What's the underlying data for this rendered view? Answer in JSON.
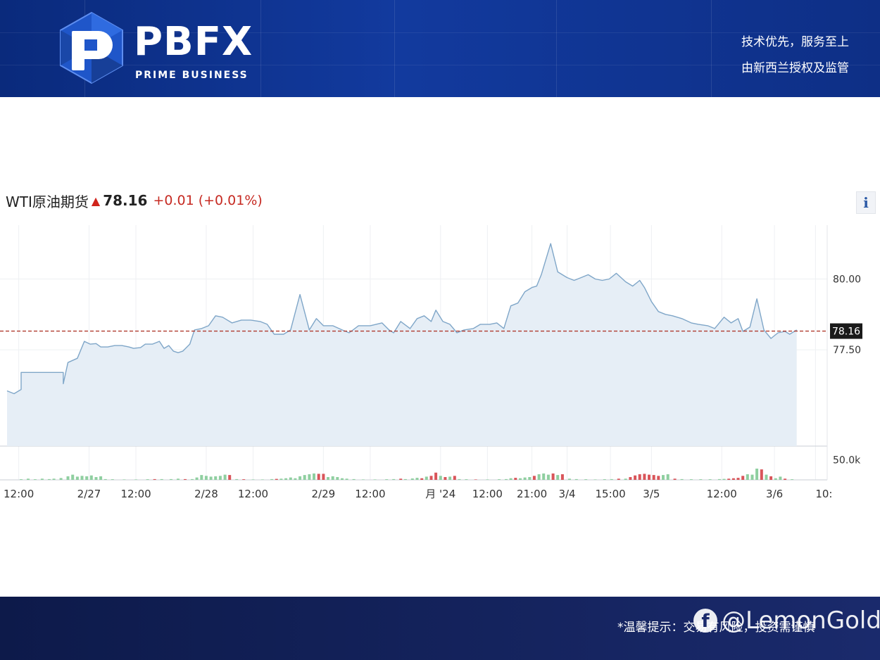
{
  "header": {
    "brand_word": "PBFX",
    "brand_sub": "PRIME BUSINESS",
    "slogan_1": "技术优先，服务至上",
    "slogan_2": "由新西兰授权及监管"
  },
  "quote": {
    "name": "WTI原油期货",
    "price": "78.16",
    "change": "+0.01",
    "change_pct": "(+0.01%)",
    "direction": "up"
  },
  "info_button": {
    "label": "i"
  },
  "colors": {
    "line": "#7fa6c8",
    "area": "#e6eef6",
    "price_line": "#b03a2e",
    "volume_up": "#8fcfa0",
    "volume_down": "#d9555a",
    "tag_bg": "#1a1a1a"
  },
  "chart_data": {
    "type": "area",
    "title": "WTI原油期货",
    "last_price": 78.16,
    "price_axis": {
      "ticks": [
        "80.00",
        "77.50"
      ],
      "tick_values": [
        80.0,
        77.5
      ],
      "range": [
        74.1,
        81.9
      ],
      "last_label": "78.16"
    },
    "volume_axis": {
      "ticks": [
        "50.0k"
      ],
      "tick_values": [
        50000
      ],
      "range": [
        0,
        70000
      ]
    },
    "x_tick_labels": [
      "12:00",
      "2/27",
      "12:00",
      "2/28",
      "12:00",
      "2/29",
      "12:00",
      "月 '24",
      "12:00",
      "21:00",
      "3/4",
      "15:00",
      "3/5",
      "12:00",
      "3/6",
      "10:"
    ],
    "x_tick_positions": [
      0.1,
      0.7,
      1.1,
      1.7,
      2.1,
      2.7,
      3.1,
      3.7,
      4.1,
      4.48,
      4.78,
      5.15,
      5.5,
      6.1,
      6.55,
      6.9
    ],
    "x_range": [
      0,
      7.0
    ],
    "grid": true,
    "series": [
      {
        "values": [
          [
            0.0,
            76.05
          ],
          [
            0.06,
            75.95
          ],
          [
            0.12,
            76.1
          ],
          [
            0.12,
            76.7
          ],
          [
            0.48,
            76.7
          ],
          [
            0.48,
            76.3
          ],
          [
            0.52,
            77.05
          ],
          [
            0.6,
            77.2
          ],
          [
            0.66,
            77.8
          ],
          [
            0.71,
            77.7
          ],
          [
            0.76,
            77.72
          ],
          [
            0.8,
            77.6
          ],
          [
            0.86,
            77.6
          ],
          [
            0.92,
            77.65
          ],
          [
            0.98,
            77.65
          ],
          [
            1.04,
            77.6
          ],
          [
            1.08,
            77.55
          ],
          [
            1.14,
            77.58
          ],
          [
            1.18,
            77.7
          ],
          [
            1.24,
            77.7
          ],
          [
            1.3,
            77.8
          ],
          [
            1.34,
            77.55
          ],
          [
            1.38,
            77.65
          ],
          [
            1.42,
            77.45
          ],
          [
            1.46,
            77.4
          ],
          [
            1.5,
            77.45
          ],
          [
            1.56,
            77.7
          ],
          [
            1.6,
            78.2
          ],
          [
            1.66,
            78.25
          ],
          [
            1.72,
            78.35
          ],
          [
            1.78,
            78.7
          ],
          [
            1.84,
            78.65
          ],
          [
            1.92,
            78.45
          ],
          [
            2.0,
            78.55
          ],
          [
            2.08,
            78.55
          ],
          [
            2.16,
            78.5
          ],
          [
            2.22,
            78.4
          ],
          [
            2.28,
            78.05
          ],
          [
            2.36,
            78.05
          ],
          [
            2.42,
            78.2
          ],
          [
            2.5,
            79.45
          ],
          [
            2.58,
            78.2
          ],
          [
            2.64,
            78.6
          ],
          [
            2.7,
            78.35
          ],
          [
            2.78,
            78.35
          ],
          [
            2.86,
            78.2
          ],
          [
            2.92,
            78.1
          ],
          [
            3.0,
            78.35
          ],
          [
            3.1,
            78.35
          ],
          [
            3.2,
            78.45
          ],
          [
            3.26,
            78.2
          ],
          [
            3.3,
            78.1
          ],
          [
            3.36,
            78.5
          ],
          [
            3.44,
            78.25
          ],
          [
            3.5,
            78.6
          ],
          [
            3.56,
            78.7
          ],
          [
            3.62,
            78.5
          ],
          [
            3.66,
            78.9
          ],
          [
            3.72,
            78.5
          ],
          [
            3.78,
            78.4
          ],
          [
            3.84,
            78.1
          ],
          [
            3.9,
            78.2
          ],
          [
            3.98,
            78.25
          ],
          [
            4.04,
            78.4
          ],
          [
            4.12,
            78.4
          ],
          [
            4.18,
            78.45
          ],
          [
            4.24,
            78.25
          ],
          [
            4.3,
            79.05
          ],
          [
            4.36,
            79.15
          ],
          [
            4.42,
            79.55
          ],
          [
            4.48,
            79.7
          ],
          [
            4.52,
            79.75
          ],
          [
            4.56,
            80.15
          ],
          [
            4.64,
            81.25
          ],
          [
            4.7,
            80.25
          ],
          [
            4.78,
            80.05
          ],
          [
            4.84,
            79.95
          ],
          [
            4.9,
            80.05
          ],
          [
            4.96,
            80.15
          ],
          [
            5.02,
            80.0
          ],
          [
            5.08,
            79.95
          ],
          [
            5.14,
            80.0
          ],
          [
            5.2,
            80.2
          ],
          [
            5.28,
            79.9
          ],
          [
            5.34,
            79.75
          ],
          [
            5.4,
            79.95
          ],
          [
            5.44,
            79.7
          ],
          [
            5.5,
            79.2
          ],
          [
            5.56,
            78.85
          ],
          [
            5.62,
            78.75
          ],
          [
            5.68,
            78.7
          ],
          [
            5.76,
            78.6
          ],
          [
            5.84,
            78.45
          ],
          [
            5.9,
            78.4
          ],
          [
            5.98,
            78.35
          ],
          [
            6.04,
            78.25
          ],
          [
            6.12,
            78.65
          ],
          [
            6.18,
            78.45
          ],
          [
            6.24,
            78.6
          ],
          [
            6.28,
            78.15
          ],
          [
            6.34,
            78.3
          ],
          [
            6.4,
            79.3
          ],
          [
            6.46,
            78.2
          ],
          [
            6.52,
            77.9
          ],
          [
            6.58,
            78.1
          ],
          [
            6.64,
            78.15
          ],
          [
            6.68,
            78.05
          ],
          [
            6.74,
            78.2
          ]
        ]
      }
    ],
    "volume": [
      [
        0.12,
        1500,
        "up"
      ],
      [
        0.18,
        3000,
        "up"
      ],
      [
        0.24,
        1500,
        "up"
      ],
      [
        0.3,
        3000,
        "up"
      ],
      [
        0.36,
        2000,
        "up"
      ],
      [
        0.4,
        3000,
        "up"
      ],
      [
        0.46,
        4500,
        "up"
      ],
      [
        0.52,
        9000,
        "up"
      ],
      [
        0.56,
        13000,
        "up"
      ],
      [
        0.6,
        8000,
        "up"
      ],
      [
        0.64,
        10000,
        "up"
      ],
      [
        0.68,
        9000,
        "up"
      ],
      [
        0.72,
        11000,
        "up"
      ],
      [
        0.76,
        7000,
        "up"
      ],
      [
        0.8,
        9000,
        "up"
      ],
      [
        0.84,
        2000,
        "up"
      ],
      [
        0.9,
        1500,
        "up"
      ],
      [
        1.0,
        1000,
        "up"
      ],
      [
        1.1,
        1000,
        "up"
      ],
      [
        1.2,
        1500,
        "up"
      ],
      [
        1.26,
        2000,
        "down"
      ],
      [
        1.32,
        2000,
        "up"
      ],
      [
        1.4,
        2000,
        "up"
      ],
      [
        1.46,
        3000,
        "up"
      ],
      [
        1.52,
        2000,
        "down"
      ],
      [
        1.58,
        2000,
        "up"
      ],
      [
        1.62,
        6000,
        "up"
      ],
      [
        1.66,
        12000,
        "up"
      ],
      [
        1.7,
        10000,
        "up"
      ],
      [
        1.74,
        8000,
        "up"
      ],
      [
        1.78,
        9000,
        "up"
      ],
      [
        1.82,
        10000,
        "up"
      ],
      [
        1.86,
        13000,
        "up"
      ],
      [
        1.9,
        12000,
        "down"
      ],
      [
        1.96,
        2000,
        "up"
      ],
      [
        2.02,
        1500,
        "down"
      ],
      [
        2.1,
        1000,
        "up"
      ],
      [
        2.18,
        1000,
        "up"
      ],
      [
        2.26,
        2000,
        "up"
      ],
      [
        2.3,
        2500,
        "down"
      ],
      [
        2.34,
        3000,
        "up"
      ],
      [
        2.38,
        4000,
        "up"
      ],
      [
        2.42,
        6000,
        "up"
      ],
      [
        2.46,
        4000,
        "up"
      ],
      [
        2.5,
        9000,
        "up"
      ],
      [
        2.54,
        12000,
        "up"
      ],
      [
        2.58,
        14000,
        "up"
      ],
      [
        2.62,
        16000,
        "up"
      ],
      [
        2.66,
        15000,
        "down"
      ],
      [
        2.7,
        15000,
        "down"
      ],
      [
        2.74,
        7000,
        "up"
      ],
      [
        2.78,
        9000,
        "up"
      ],
      [
        2.82,
        7000,
        "up"
      ],
      [
        2.86,
        4000,
        "up"
      ],
      [
        2.9,
        3000,
        "up"
      ],
      [
        2.96,
        2000,
        "up"
      ],
      [
        3.04,
        1000,
        "up"
      ],
      [
        3.14,
        1000,
        "up"
      ],
      [
        3.24,
        1500,
        "up"
      ],
      [
        3.3,
        2000,
        "up"
      ],
      [
        3.36,
        3000,
        "down"
      ],
      [
        3.4,
        2000,
        "up"
      ],
      [
        3.46,
        3500,
        "up"
      ],
      [
        3.5,
        5000,
        "up"
      ],
      [
        3.54,
        4000,
        "down"
      ],
      [
        3.58,
        8000,
        "up"
      ],
      [
        3.62,
        10000,
        "down"
      ],
      [
        3.66,
        18000,
        "down"
      ],
      [
        3.7,
        10000,
        "up"
      ],
      [
        3.74,
        7000,
        "down"
      ],
      [
        3.78,
        8000,
        "up"
      ],
      [
        3.82,
        10000,
        "down"
      ],
      [
        3.86,
        2000,
        "up"
      ],
      [
        3.92,
        1500,
        "up"
      ],
      [
        4.0,
        1000,
        "down"
      ],
      [
        4.1,
        1000,
        "up"
      ],
      [
        4.2,
        1500,
        "up"
      ],
      [
        4.26,
        2000,
        "up"
      ],
      [
        4.3,
        4000,
        "up"
      ],
      [
        4.34,
        5000,
        "down"
      ],
      [
        4.38,
        4000,
        "up"
      ],
      [
        4.42,
        6000,
        "up"
      ],
      [
        4.46,
        7000,
        "up"
      ],
      [
        4.5,
        10000,
        "down"
      ],
      [
        4.54,
        14000,
        "up"
      ],
      [
        4.58,
        16000,
        "up"
      ],
      [
        4.62,
        13000,
        "up"
      ],
      [
        4.66,
        16000,
        "down"
      ],
      [
        4.7,
        12000,
        "up"
      ],
      [
        4.74,
        14000,
        "down"
      ],
      [
        4.8,
        3000,
        "up"
      ],
      [
        4.86,
        2000,
        "up"
      ],
      [
        4.94,
        1500,
        "up"
      ],
      [
        5.02,
        1000,
        "up"
      ],
      [
        5.1,
        1500,
        "up"
      ],
      [
        5.16,
        2000,
        "up"
      ],
      [
        5.22,
        3000,
        "down"
      ],
      [
        5.28,
        3000,
        "up"
      ],
      [
        5.32,
        7000,
        "down"
      ],
      [
        5.36,
        11000,
        "down"
      ],
      [
        5.4,
        14000,
        "down"
      ],
      [
        5.44,
        15000,
        "down"
      ],
      [
        5.48,
        13000,
        "down"
      ],
      [
        5.52,
        12000,
        "down"
      ],
      [
        5.56,
        10000,
        "down"
      ],
      [
        5.6,
        12000,
        "up"
      ],
      [
        5.64,
        14000,
        "up"
      ],
      [
        5.7,
        3000,
        "down"
      ],
      [
        5.76,
        2000,
        "up"
      ],
      [
        5.84,
        1500,
        "up"
      ],
      [
        5.92,
        1500,
        "up"
      ],
      [
        6.0,
        1500,
        "up"
      ],
      [
        6.08,
        2000,
        "up"
      ],
      [
        6.12,
        2500,
        "up"
      ],
      [
        6.16,
        3000,
        "down"
      ],
      [
        6.2,
        4000,
        "down"
      ],
      [
        6.24,
        5000,
        "down"
      ],
      [
        6.28,
        10000,
        "down"
      ],
      [
        6.32,
        14000,
        "up"
      ],
      [
        6.36,
        13000,
        "up"
      ],
      [
        6.4,
        28000,
        "up"
      ],
      [
        6.44,
        26000,
        "down"
      ],
      [
        6.48,
        13000,
        "up"
      ],
      [
        6.52,
        9000,
        "down"
      ],
      [
        6.56,
        4000,
        "up"
      ],
      [
        6.6,
        8000,
        "up"
      ],
      [
        6.64,
        3000,
        "down"
      ],
      [
        6.7,
        1500,
        "up"
      ]
    ]
  },
  "footer": {
    "note": "*温馨提示：交易有风险，投资需谨慎",
    "watermark": "@LemonGold",
    "watermark_icon": "facebook-icon"
  }
}
